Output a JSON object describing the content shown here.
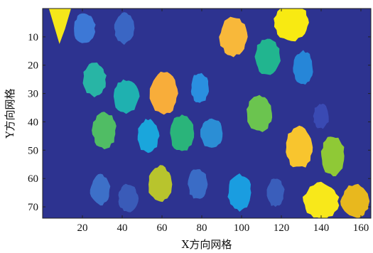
{
  "chart_data": {
    "type": "heatmap",
    "xlabel": "X方向网格",
    "ylabel": "Y方向网格",
    "xlim": [
      0,
      165
    ],
    "ylim": [
      0,
      74
    ],
    "y_inverted": true,
    "x_ticks": [
      20,
      40,
      60,
      80,
      100,
      120,
      140,
      160
    ],
    "y_ticks": [
      10,
      20,
      30,
      40,
      50,
      60,
      70
    ],
    "grid": false,
    "background_color": "#2d3390",
    "blobs": [
      {
        "x": 9,
        "y": 6,
        "rx": 5.5,
        "ry": 6.5,
        "color": "#f5e71a",
        "shape": "tri"
      },
      {
        "x": 21,
        "y": 7,
        "rx": 5.5,
        "ry": 5.5,
        "color": "#3d78d6"
      },
      {
        "x": 41,
        "y": 7,
        "rx": 5.0,
        "ry": 5.5,
        "color": "#3a66c4"
      },
      {
        "x": 96,
        "y": 10,
        "rx": 7.0,
        "ry": 7.0,
        "color": "#f8b83a"
      },
      {
        "x": 125,
        "y": 5,
        "rx": 9.0,
        "ry": 6.5,
        "color": "#f8ea12"
      },
      {
        "x": 113,
        "y": 17,
        "rx": 6.5,
        "ry": 6.5,
        "color": "#21b58f"
      },
      {
        "x": 131,
        "y": 21,
        "rx": 5.0,
        "ry": 6.0,
        "color": "#2686d8"
      },
      {
        "x": 26,
        "y": 25,
        "rx": 6.0,
        "ry": 6.0,
        "color": "#28b5a5"
      },
      {
        "x": 42,
        "y": 31,
        "rx": 6.5,
        "ry": 6.0,
        "color": "#1fb1b0"
      },
      {
        "x": 61,
        "y": 30,
        "rx": 7.0,
        "ry": 7.5,
        "color": "#f8ad3a"
      },
      {
        "x": 79,
        "y": 28,
        "rx": 4.5,
        "ry": 5.5,
        "color": "#2a8fe0"
      },
      {
        "x": 109,
        "y": 37,
        "rx": 6.5,
        "ry": 6.5,
        "color": "#6bc44f"
      },
      {
        "x": 140,
        "y": 38,
        "rx": 4.0,
        "ry": 4.5,
        "color": "#3a4ab3"
      },
      {
        "x": 31,
        "y": 43,
        "rx": 6.0,
        "ry": 6.5,
        "color": "#50bd64"
      },
      {
        "x": 53,
        "y": 45,
        "rx": 5.5,
        "ry": 6.0,
        "color": "#1aa6dc"
      },
      {
        "x": 70,
        "y": 44,
        "rx": 6.0,
        "ry": 6.5,
        "color": "#2ab47a"
      },
      {
        "x": 85,
        "y": 44,
        "rx": 5.5,
        "ry": 5.5,
        "color": "#2b8ed5"
      },
      {
        "x": 129,
        "y": 49,
        "rx": 7.0,
        "ry": 7.5,
        "color": "#f8c52e"
      },
      {
        "x": 146,
        "y": 52,
        "rx": 6.0,
        "ry": 7.0,
        "color": "#8fc936"
      },
      {
        "x": 29,
        "y": 64,
        "rx": 5.0,
        "ry": 5.5,
        "color": "#3d70c8"
      },
      {
        "x": 43,
        "y": 67,
        "rx": 5.0,
        "ry": 5.0,
        "color": "#3a5bb8"
      },
      {
        "x": 59,
        "y": 62,
        "rx": 6.0,
        "ry": 6.5,
        "color": "#b8c42d"
      },
      {
        "x": 78,
        "y": 62,
        "rx": 5.0,
        "ry": 5.5,
        "color": "#3a6cc6"
      },
      {
        "x": 99,
        "y": 65,
        "rx": 6.0,
        "ry": 6.5,
        "color": "#1a9de0"
      },
      {
        "x": 117,
        "y": 65,
        "rx": 4.5,
        "ry": 5.0,
        "color": "#3a5ebb"
      },
      {
        "x": 140,
        "y": 68,
        "rx": 9.0,
        "ry": 6.5,
        "color": "#f8e81a"
      },
      {
        "x": 157,
        "y": 68,
        "rx": 7.0,
        "ry": 6.0,
        "color": "#e8b81e"
      }
    ]
  }
}
